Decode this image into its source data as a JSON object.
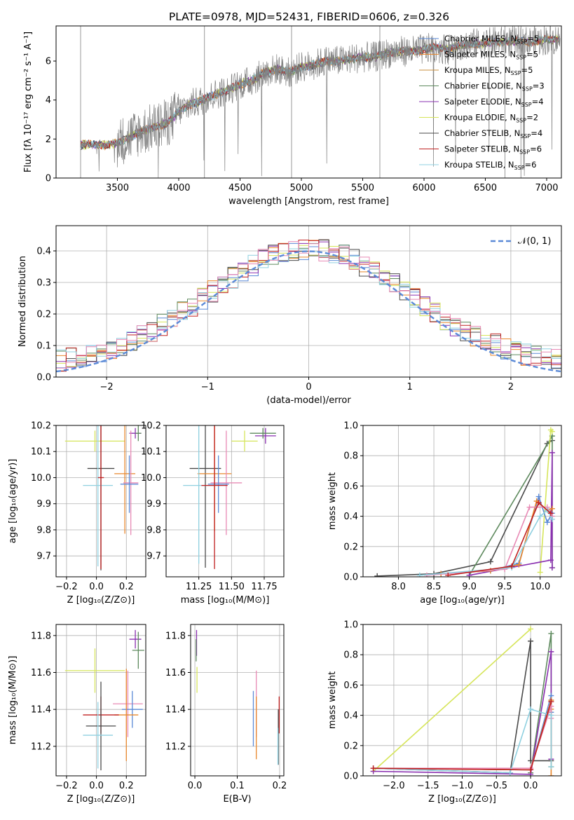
{
  "title": "PLATE=0978, MJD=52431, FIBERID=0606, z=0.326",
  "colors": {
    "Chabrier MILES": "#5b8ad7",
    "Salpeter MILES": "#e8872c",
    "Kroupa MILES": "#c98f3d",
    "Chabrier ELODIE": "#5e8a5e",
    "Salpeter ELODIE": "#8a2fb0",
    "Kroupa ELODIE": "#d6e55a",
    "Chabrier STELIB": "#4a4a4a",
    "Salpeter STELIB": "#c02020",
    "Kroupa STELIB": "#8fd0e0",
    "data": "#808080",
    "gaussian": "#5b8ad7",
    "pink": "#e88ab5"
  },
  "chart_data": [
    {
      "id": "spectrum",
      "type": "line",
      "xlabel": "wavelength [Angstrom, rest frame]",
      "ylabel": "Flux [fλ 10⁻¹⁷ erg cm⁻² s⁻¹ A⁻¹]",
      "xlim": [
        3000,
        7120
      ],
      "ylim": [
        0,
        7.8
      ],
      "xticks": [
        "3500",
        "4000",
        "4500",
        "5000",
        "5500",
        "6000",
        "6500",
        "7000"
      ],
      "yticks": [
        "0",
        "2",
        "4",
        "6"
      ],
      "legend_position": "top-right",
      "legend": [
        "Chabrier MILES, N_SSP=5",
        "Salpeter MILES, N_SSP=5",
        "Kroupa MILES, N_SSP=5",
        "Chabrier ELODIE, N_SSP=3",
        "Salpeter ELODIE, N_SSP=4",
        "Kroupa ELODIE, N_SSP=2",
        "Chabrier STELIB, N_SSP=4",
        "Salpeter STELIB, N_SSP=6",
        "Kroupa STELIB, N_SSP=6"
      ],
      "continuum": {
        "x": [
          3200,
          3400,
          3500,
          3600,
          3700,
          3800,
          3900,
          4000,
          4100,
          4200,
          4300,
          4400,
          4500,
          4600,
          4700,
          4800,
          4900,
          5000,
          5100,
          5200,
          5300,
          5400,
          5500,
          5600,
          5700,
          5800,
          5900,
          6000,
          6100,
          6200,
          6300,
          6400,
          6500,
          6600,
          6700,
          6800,
          6900,
          7000,
          7100
        ],
        "y": [
          1.7,
          1.7,
          1.8,
          2.1,
          2.4,
          2.6,
          2.8,
          3.4,
          3.8,
          4.0,
          4.3,
          4.5,
          4.8,
          5.0,
          5.4,
          5.6,
          5.4,
          5.7,
          5.8,
          6.0,
          6.0,
          6.1,
          6.2,
          6.2,
          6.4,
          6.5,
          6.5,
          6.6,
          6.7,
          6.6,
          6.8,
          6.9,
          6.9,
          7.0,
          7.0,
          7.0,
          7.0,
          7.1,
          7.1
        ]
      }
    },
    {
      "id": "residuals",
      "type": "histogram",
      "xlabel": "(data-model)/error",
      "ylabel": "Normed distribution",
      "xlim": [
        -2.5,
        2.5
      ],
      "ylim": [
        0,
        0.48
      ],
      "xticks": [
        "−2",
        "−1",
        "0",
        "1",
        "2"
      ],
      "yticks": [
        "0.0",
        "0.1",
        "0.2",
        "0.3",
        "0.4"
      ],
      "legend_position": "top-right",
      "legend": [
        "𝒩(0, 1)"
      ]
    },
    {
      "id": "age-vs-Z",
      "type": "errorbar",
      "xlabel": "Z [log₁₀(Z/Z⊙)]",
      "ylabel": "age  [log₁₀(age/yr)]",
      "xlim": [
        -0.27,
        0.33
      ],
      "ylim": [
        9.62,
        10.2
      ],
      "xticks": [
        "−0.2",
        "0.0",
        "0.2"
      ],
      "yticks": [
        "9.7",
        "9.8",
        "9.9",
        "10.0",
        "10.1",
        "10.2"
      ],
      "points": [
        {
          "s": "Kroupa ELODIE",
          "x": -0.01,
          "xe": 0.2,
          "y": 10.14,
          "ye": 0.04
        },
        {
          "s": "Salpeter ELODIE",
          "x": 0.26,
          "xe": 0.04,
          "y": 10.17,
          "ye": 0.02
        },
        {
          "s": "Chabrier ELODIE",
          "x": 0.28,
          "xe": 0.02,
          "y": 10.17,
          "ye": 0.03
        },
        {
          "s": "Chabrier STELIB",
          "x": 0.03,
          "xe": 0.09,
          "y": 10.035,
          "ye": 0.39
        },
        {
          "s": "Salpeter MILES",
          "x": 0.19,
          "xe": 0.07,
          "y": 10.015,
          "ye": 0.23
        },
        {
          "s": "Pink",
          "x": 0.23,
          "xe": 0.05,
          "y": 9.98,
          "ye": 0.2
        },
        {
          "s": "Chabrier MILES",
          "x": 0.22,
          "xe": 0.06,
          "y": 9.975,
          "ye": 0.11
        },
        {
          "s": "Kroupa STELIB",
          "x": 0.01,
          "xe": 0.1,
          "y": 9.97,
          "ye": 0.31
        },
        {
          "s": "Salpeter STELIB",
          "x": 0.03,
          "xe": 0.02,
          "y": 10.0,
          "ye": 0.35
        }
      ]
    },
    {
      "id": "age-vs-mass",
      "type": "errorbar",
      "xlabel": "mass [log₁₀(M/M⊙)]",
      "ylabel": "",
      "xlim": [
        11.0,
        11.9
      ],
      "ylim": [
        9.62,
        10.2
      ],
      "xticks": [
        "11.25",
        "11.50",
        "11.75"
      ],
      "yticks": [
        "9.7",
        "9.8",
        "9.9",
        "10.0",
        "10.1",
        "10.2"
      ],
      "points": [
        {
          "s": "Kroupa ELODIE",
          "x": 11.6,
          "xe": 0.1,
          "y": 10.14,
          "ye": 0.04
        },
        {
          "s": "Salpeter ELODIE",
          "x": 11.76,
          "xe": 0.08,
          "y": 10.16,
          "ye": 0.03
        },
        {
          "s": "Chabrier ELODIE",
          "x": 11.74,
          "xe": 0.1,
          "y": 10.17,
          "ye": 0.02
        },
        {
          "s": "Chabrier STELIB",
          "x": 11.3,
          "xe": 0.12,
          "y": 10.035,
          "ye": 0.38
        },
        {
          "s": "Salpeter MILES",
          "x": 11.37,
          "xe": 0.13,
          "y": 10.015,
          "ye": 0.22
        },
        {
          "s": "Pink",
          "x": 11.46,
          "xe": 0.12,
          "y": 9.98,
          "ye": 0.2
        },
        {
          "s": "Chabrier MILES",
          "x": 11.4,
          "xe": 0.08,
          "y": 9.975,
          "ye": 0.11
        },
        {
          "s": "Kroupa STELIB",
          "x": 11.25,
          "xe": 0.12,
          "y": 9.97,
          "ye": 0.3
        },
        {
          "s": "Salpeter STELIB",
          "x": 11.37,
          "xe": 0.1,
          "y": 9.97,
          "ye": 0.32
        }
      ]
    },
    {
      "id": "massweight-vs-age",
      "type": "line",
      "xlabel": "age  [log₁₀(age/yr)]",
      "ylabel": "mass weight",
      "xlim": [
        7.5,
        10.3
      ],
      "ylim": [
        0,
        1.0
      ],
      "xticks": [
        "8.0",
        "8.5",
        "9.0",
        "9.5",
        "10.0"
      ],
      "yticks": [
        "0.0",
        "0.2",
        "0.4",
        "0.6",
        "0.8",
        "1.0"
      ],
      "series": [
        {
          "s": "Chabrier STELIB",
          "x": [
            7.7,
            8.5,
            9.3,
            10.1,
            10.17
          ],
          "y": [
            0.005,
            0.02,
            0.1,
            0.88,
            0.9
          ]
        },
        {
          "s": "Chabrier ELODIE",
          "x": [
            9.0,
            10.17,
            10.17
          ],
          "y": [
            0.01,
            0.93,
            0.06
          ]
        },
        {
          "s": "Kroupa ELODIE",
          "x": [
            10.0,
            10.15,
            10.17
          ],
          "y": [
            0.03,
            0.97,
            0.96
          ]
        },
        {
          "s": "Salpeter ELODIE",
          "x": [
            9.0,
            10.15,
            10.17,
            10.17
          ],
          "y": [
            0.01,
            0.11,
            0.82,
            0.06
          ]
        },
        {
          "s": "Chabrier MILES",
          "x": [
            8.6,
            9.3,
            9.7,
            9.98,
            10.1,
            10.17
          ],
          "y": [
            0.02,
            0.04,
            0.09,
            0.53,
            0.36,
            0.42
          ]
        },
        {
          "s": "Salpeter MILES",
          "x": [
            8.6,
            9.3,
            9.7,
            9.95,
            10.1,
            10.17
          ],
          "y": [
            0.02,
            0.04,
            0.08,
            0.5,
            0.44,
            0.45
          ]
        },
        {
          "s": "Pink",
          "x": [
            8.4,
            9.5,
            9.85,
            10.1,
            10.17
          ],
          "y": [
            0.01,
            0.05,
            0.46,
            0.46,
            0.4
          ]
        },
        {
          "s": "Kroupa STELIB",
          "x": [
            8.3,
            9.6,
            10.0,
            10.1,
            10.17
          ],
          "y": [
            0.01,
            0.06,
            0.4,
            0.44,
            0.38
          ]
        },
        {
          "s": "Salpeter STELIB",
          "x": [
            8.7,
            9.6,
            9.98,
            10.15
          ],
          "y": [
            0.01,
            0.07,
            0.49,
            0.42
          ]
        }
      ]
    },
    {
      "id": "mass-vs-Z",
      "type": "errorbar",
      "xlabel": "Z [log₁₀(Z/Z⊙)]",
      "ylabel": "mass [log₁₀(M/M⊙)]",
      "xlim": [
        -0.27,
        0.33
      ],
      "ylim": [
        11.04,
        11.86
      ],
      "xticks": [
        "−0.2",
        "0.0",
        "0.2"
      ],
      "yticks": [
        "11.2",
        "11.4",
        "11.6",
        "11.8"
      ],
      "points": [
        {
          "s": "Salpeter ELODIE",
          "x": 0.26,
          "xe": 0.04,
          "y": 11.78,
          "ye": 0.05
        },
        {
          "s": "Chabrier ELODIE",
          "x": 0.28,
          "xe": 0.04,
          "y": 11.72,
          "ye": 0.1
        },
        {
          "s": "Kroupa ELODIE",
          "x": -0.01,
          "xe": 0.2,
          "y": 11.61,
          "ye": 0.12
        },
        {
          "s": "Pink",
          "x": 0.21,
          "xe": 0.1,
          "y": 11.43,
          "ye": 0.18
        },
        {
          "s": "Chabrier MILES",
          "x": 0.24,
          "xe": 0.07,
          "y": 11.4,
          "ye": 0.1
        },
        {
          "s": "Salpeter MILES",
          "x": 0.2,
          "xe": 0.08,
          "y": 11.37,
          "ye": 0.25
        },
        {
          "s": "Salpeter STELIB",
          "x": 0.03,
          "xe": 0.12,
          "y": 11.37,
          "ye": 0.1
        },
        {
          "s": "Chabrier STELIB",
          "x": 0.03,
          "xe": 0.1,
          "y": 11.31,
          "ye": 0.24
        },
        {
          "s": "Kroupa STELIB",
          "x": 0.01,
          "xe": 0.1,
          "y": 11.26,
          "ye": 0.18
        }
      ]
    },
    {
      "id": "mass-vs-EBV",
      "type": "errorbar",
      "xlabel": "E(B-V)",
      "ylabel": "",
      "xlim": [
        -0.01,
        0.21
      ],
      "ylim": [
        11.04,
        11.86
      ],
      "xticks": [
        "0.0",
        "0.1",
        "0.2"
      ],
      "yticks": [
        "11.2",
        "11.4",
        "11.6",
        "11.8"
      ],
      "points": [
        {
          "s": "Salpeter ELODIE",
          "x": 0.004,
          "xe": 0,
          "y": 11.76,
          "ye": 0.07
        },
        {
          "s": "Kroupa ELODIE",
          "x": 0.005,
          "xe": 0,
          "y": 11.56,
          "ye": 0.07
        },
        {
          "s": "Chabrier ELODIE",
          "x": 0.003,
          "xe": 0,
          "y": 11.72,
          "ye": 0.06
        },
        {
          "s": "Pink",
          "x": 0.145,
          "xe": 0,
          "y": 11.43,
          "ye": 0.18
        },
        {
          "s": "Salpeter MILES",
          "x": 0.145,
          "xe": 0,
          "y": 11.3,
          "ye": 0.17
        },
        {
          "s": "Chabrier MILES",
          "x": 0.138,
          "xe": 0,
          "y": 11.35,
          "ye": 0.15
        },
        {
          "s": "Salpeter STELIB",
          "x": 0.199,
          "xe": 0,
          "y": 11.37,
          "ye": 0.1
        },
        {
          "s": "Chabrier STELIB",
          "x": 0.197,
          "xe": 0,
          "y": 11.25,
          "ye": 0.15
        },
        {
          "s": "Kroupa STELIB",
          "x": 0.196,
          "xe": 0,
          "y": 11.2,
          "ye": 0.1
        }
      ]
    },
    {
      "id": "massweight-vs-Z",
      "type": "line",
      "xlabel": "Z [log₁₀(Z/Z⊙)]",
      "ylabel": "mass weight",
      "xlim": [
        -2.45,
        0.45
      ],
      "ylim": [
        0,
        1.0
      ],
      "xticks": [
        "−2.0",
        "−1.5",
        "−1.0",
        "−0.5",
        "0.0"
      ],
      "yticks": [
        "0.0",
        "0.2",
        "0.4",
        "0.6",
        "0.8",
        "1.0"
      ],
      "series": [
        {
          "s": "Kroupa ELODIE",
          "x": [
            -2.3,
            0.0
          ],
          "y": [
            0.03,
            0.97
          ]
        },
        {
          "s": "Chabrier STELIB",
          "x": [
            -2.3,
            -0.3,
            0.0,
            0.0,
            0.3
          ],
          "y": [
            0.05,
            0.02,
            0.89,
            0.1,
            0.1
          ]
        },
        {
          "s": "Chabrier ELODIE",
          "x": [
            0.0,
            0.3,
            0.3
          ],
          "y": [
            0.02,
            0.94,
            0.06
          ]
        },
        {
          "s": "Salpeter ELODIE",
          "x": [
            -2.3,
            0.0,
            0.3,
            0.3
          ],
          "y": [
            0.03,
            0.01,
            0.82,
            0.11
          ]
        },
        {
          "s": "Chabrier MILES",
          "x": [
            -2.3,
            0.0,
            0.3,
            0.3
          ],
          "y": [
            0.05,
            0.04,
            0.53,
            0.42
          ]
        },
        {
          "s": "Salpeter MILES",
          "x": [
            -2.3,
            0.0,
            0.3,
            0.3,
            0.3
          ],
          "y": [
            0.05,
            0.04,
            0.5,
            0.44,
            0.0
          ]
        },
        {
          "s": "Pink",
          "x": [
            -2.3,
            0.0,
            0.3,
            0.3
          ],
          "y": [
            0.05,
            0.05,
            0.46,
            0.38
          ]
        },
        {
          "s": "Kroupa STELIB",
          "x": [
            -2.3,
            -0.3,
            0.0,
            0.3,
            0.3
          ],
          "y": [
            0.05,
            0.02,
            0.44,
            0.4,
            0.06
          ]
        },
        {
          "s": "Salpeter STELIB",
          "x": [
            -2.3,
            0.0,
            0.3
          ],
          "y": [
            0.05,
            0.04,
            0.49
          ]
        }
      ]
    }
  ]
}
